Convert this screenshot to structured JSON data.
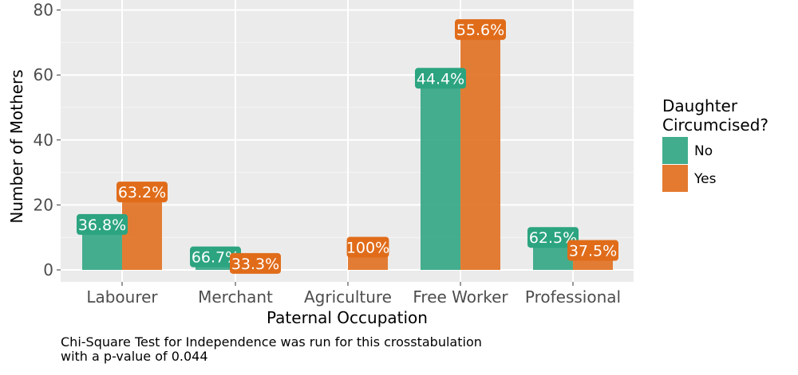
{
  "chart_data": {
    "type": "bar",
    "xlabel": "Paternal Occupation",
    "ylabel": "Number of Mothers",
    "categories": [
      "Labourer",
      "Merchant",
      "Agriculture",
      "Free Worker",
      "Professional"
    ],
    "ylim": [
      0,
      80
    ],
    "yticks": [
      0,
      20,
      40,
      60,
      80
    ],
    "grid": true,
    "legend": {
      "title": [
        "Daughter",
        "Circumcised?"
      ],
      "position": "right"
    },
    "series": [
      {
        "name": "No",
        "color": "#2ca480",
        "values": [
          14,
          4,
          0,
          59,
          10
        ],
        "labels": [
          "36.8%",
          "66.7%",
          null,
          "44.4%",
          "62.5%"
        ]
      },
      {
        "name": "Yes",
        "color": "#e06c1a",
        "values": [
          24,
          2,
          7,
          74,
          6
        ],
        "labels": [
          "63.2%",
          "33.3%",
          "100%",
          "55.6%",
          "37.5%"
        ]
      }
    ]
  },
  "caption": {
    "line1": "Chi-Square Test for Independence was run for this crosstabulation",
    "line2": "with a p-value of 0.044"
  }
}
